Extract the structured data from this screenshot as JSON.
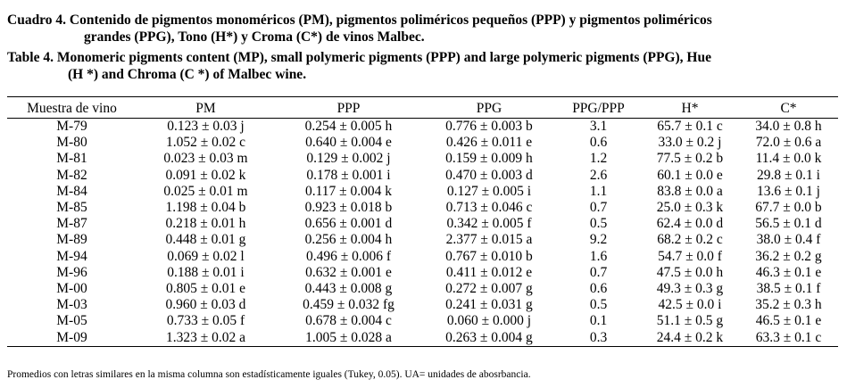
{
  "caption_es": {
    "line1": "Cuadro 4. Contenido de pigmentos monoméricos (PM), pigmentos poliméricos pequeños (PPP) y pigmentos poliméricos",
    "line2": "grandes (PPG), Tono (H*) y Croma (C*) de vinos Malbec."
  },
  "caption_en": {
    "line1": "Table 4. Monomeric pigments content (MP), small polymeric pigments (PPP) and large polymeric pigments (PPG), Hue",
    "line2": "(H *) and Chroma (C *) of Malbec wine."
  },
  "table": {
    "headers": [
      "Muestra de vino",
      "PM",
      "PPP",
      "PPG",
      "PPG/PPP",
      "H*",
      "C*"
    ],
    "rows": [
      [
        "M-79",
        "0.123 ± 0.03 j",
        "0.254 ± 0.005 h",
        "0.776 ± 0.003 b",
        "3.1",
        "65.7 ± 0.1 c",
        "34.0 ± 0.8 h"
      ],
      [
        "M-80",
        "1.052 ± 0.02 c",
        "0.640 ± 0.004 e",
        "0.426 ± 0.011 e",
        "0.6",
        "33.0 ± 0.2 j",
        "72.0 ± 0.6 a"
      ],
      [
        "M-81",
        "0.023 ± 0.03 m",
        "0.129 ± 0.002 j",
        "0.159 ± 0.009 h",
        "1.2",
        "77.5 ± 0.2 b",
        "11.4 ± 0.0 k"
      ],
      [
        "M-82",
        "0.091 ± 0.02 k",
        "0.178 ± 0.001 i",
        "0.470 ± 0.003 d",
        "2.6",
        "60.1 ± 0.0 e",
        "29.8 ± 0.1 i"
      ],
      [
        "M-84",
        "0.025 ± 0.01 m",
        "0.117 ± 0.004 k",
        "0.127 ± 0.005 i",
        "1.1",
        "83.8 ± 0.0 a",
        "13.6 ± 0.1 j"
      ],
      [
        "M-85",
        "1.198 ± 0.04 b",
        "0.923 ± 0.018 b",
        "0.713 ± 0.046 c",
        "0.7",
        "25.0 ± 0.3 k",
        "67.7 ± 0.0 b"
      ],
      [
        "M-87",
        "0.218 ± 0.01 h",
        "0.656 ± 0.001 d",
        "0.342 ± 0.005 f",
        "0.5",
        "62.4 ± 0.0 d",
        "56.5 ± 0.1 d"
      ],
      [
        "M-89",
        "0.448 ± 0.01 g",
        "0.256 ± 0.004 h",
        "2.377 ± 0.015 a",
        "9.2",
        "68.2 ± 0.2 c",
        "38.0 ± 0.4 f"
      ],
      [
        "M-94",
        "0.069 ± 0.02 l",
        "0.496 ± 0.006 f",
        "0.767 ± 0.010 b",
        "1.6",
        "54.7 ± 0.0 f",
        "36.2 ± 0.2 g"
      ],
      [
        "M-96",
        "0.188 ± 0.01 i",
        "0.632 ± 0.001 e",
        "0.411 ± 0.012 e",
        "0.7",
        "47.5 ± 0.0 h",
        "46.3 ± 0.1 e"
      ],
      [
        "M-00",
        "0.805 ± 0.01 e",
        "0.443 ± 0.008 g",
        "0.272 ± 0.007 g",
        "0.6",
        "49.3 ± 0.3 g",
        "38.5 ± 0.1 f"
      ],
      [
        "M-03",
        "0.960 ± 0.03 d",
        "0.459 ± 0.032 fg",
        "0.241 ± 0.031 g",
        "0.5",
        "42.5 ± 0.0 i",
        "35.2 ± 0.3 h"
      ],
      [
        "M-05",
        "0.733 ± 0.05 f",
        "0.678 ± 0.004 c",
        "0.060 ± 0.000 j",
        "0.1",
        "51.1 ± 0.5 g",
        "46.5 ± 0.1 e"
      ],
      [
        "M-09",
        "1.323 ± 0.02 a",
        "1.005 ± 0.028 a",
        "0.263 ± 0.004 g",
        "0.3",
        "24.4 ± 0.2 k",
        "63.3 ± 0.1 c"
      ]
    ]
  },
  "footnote": "Promedios con letras similares en la misma columna son estadísticamente iguales (Tukey, 0.05). UA= unidades de abosrbancia."
}
